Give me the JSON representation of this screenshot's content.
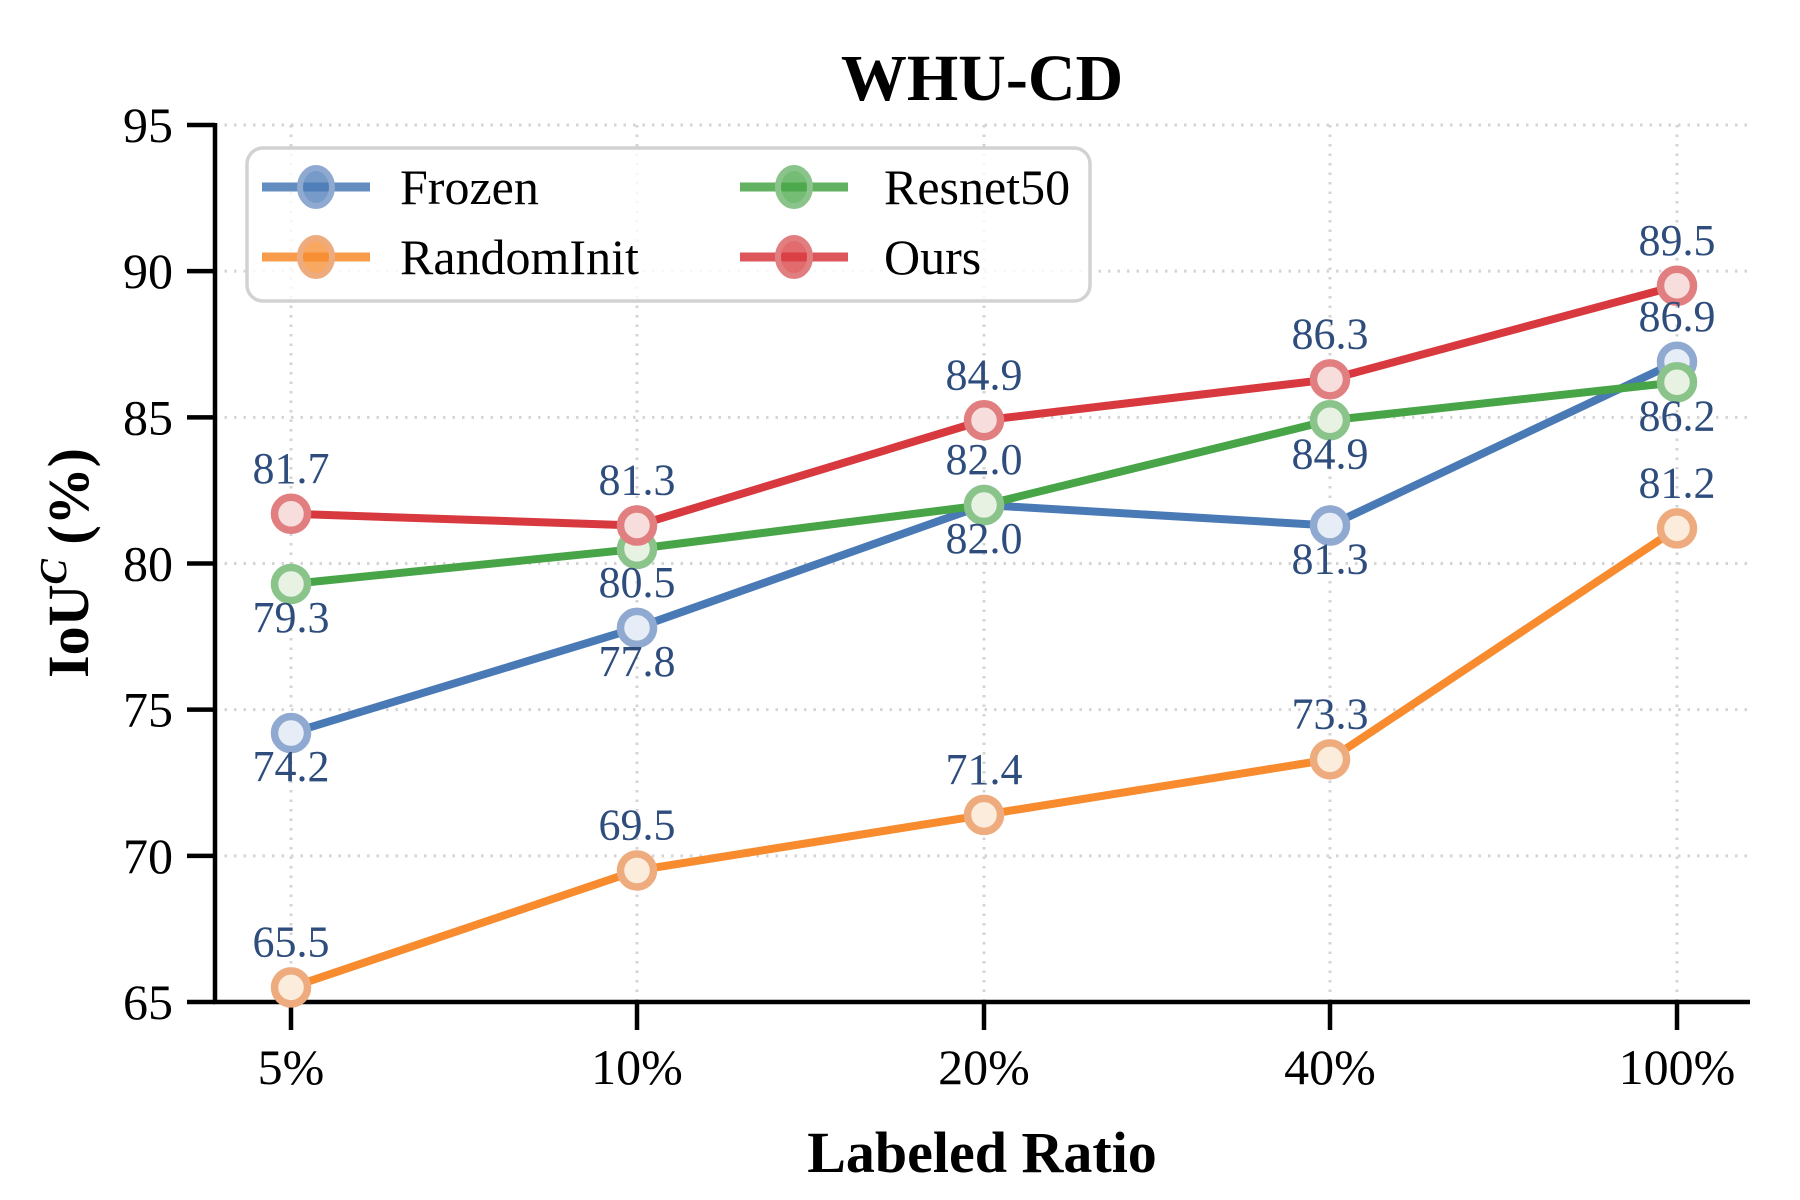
{
  "chart_data": {
    "type": "line",
    "title": "WHU-CD",
    "xlabel": "Labeled Ratio",
    "ylabel": "IoU^C (%)",
    "ylabel_parts": {
      "base": "IoU",
      "sup": "C",
      "rest": "(%)"
    },
    "categories": [
      "5%",
      "10%",
      "20%",
      "40%",
      "100%"
    ],
    "yticks": [
      65,
      70,
      75,
      80,
      85,
      90,
      95
    ],
    "ylim": [
      65,
      95
    ],
    "grid": "dotted",
    "grid_color": "#d4d4d4",
    "legend_position": "upper-left",
    "point_label_color": "#2e4d7d",
    "series": [
      {
        "name": "Frozen",
        "color": "#4a7ab5",
        "marker_edge": "#8fa9d1",
        "marker_fill": "#e6edf6",
        "values": [
          74.2,
          77.8,
          82.0,
          81.3,
          86.9
        ],
        "label_side": [
          "below",
          "below",
          "below",
          "below",
          "above"
        ]
      },
      {
        "name": "RandomInit",
        "color": "#f78b2d",
        "marker_edge": "#eeac7e",
        "marker_fill": "#fcecdc",
        "values": [
          65.5,
          69.5,
          71.4,
          73.3,
          81.2
        ],
        "label_side": [
          "above",
          "above",
          "above",
          "above",
          "above"
        ]
      },
      {
        "name": "Resnet50",
        "color": "#47a547",
        "marker_edge": "#8bc48b",
        "marker_fill": "#e7f2e3",
        "values": [
          79.3,
          80.5,
          82.0,
          84.9,
          86.2
        ],
        "label_side": [
          "below",
          "below",
          "above",
          "below",
          "below"
        ]
      },
      {
        "name": "Ours",
        "color": "#d8393e",
        "marker_edge": "#e17e80",
        "marker_fill": "#f7dedd",
        "values": [
          81.7,
          81.3,
          84.9,
          86.3,
          89.5
        ],
        "label_side": [
          "above",
          "above",
          "above",
          "above",
          "above"
        ]
      }
    ],
    "legend_columns": [
      [
        "Frozen",
        "RandomInit"
      ],
      [
        "Resnet50",
        "Ours"
      ]
    ]
  }
}
